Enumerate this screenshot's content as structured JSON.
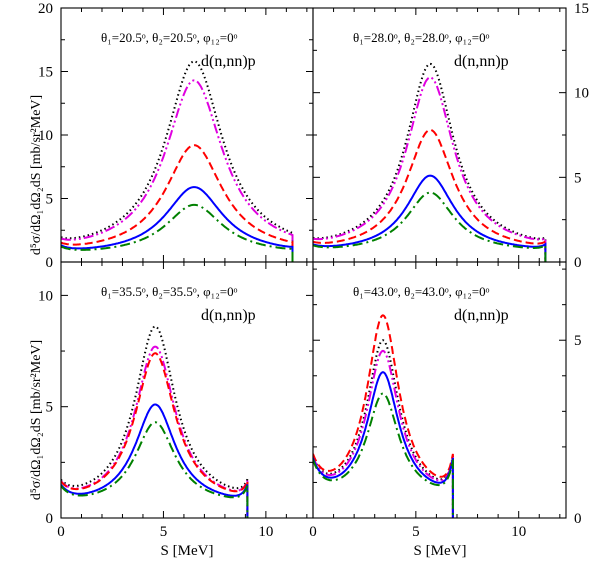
{
  "figure": {
    "ylabel_top": "d⁵σ/dΩ₁dΩ₂dS [mb/sr²MeV]",
    "ylabel_bottom": "d⁵σ/dΩ₁dΩ₂dS [mb/sr²MeV]",
    "xlabel": "S [MeV]"
  },
  "chart_data": [
    {
      "type": "line",
      "panel": "top-left",
      "annotation": "θ₁=20.5ᵒ, θ₂=20.5ᵒ, φ₁₂=0ᵒ",
      "reaction": "d(n,nn)p",
      "xlim": [
        0,
        12.3
      ],
      "ylim": [
        0,
        20
      ],
      "yticks": [
        0,
        5,
        10,
        15,
        20
      ],
      "xticks": [
        0,
        5,
        10
      ],
      "ytick_side": "left",
      "peak": 6.5,
      "hw": 1.7,
      "smax": 11.3,
      "edges": [
        1.0,
        0.6
      ],
      "series": [
        {
          "style": "dotted",
          "color": "#000000",
          "peak_value": 15.8
        },
        {
          "style": "dash-dot-dot",
          "color": "#e000e0",
          "peak_value": 14.3
        },
        {
          "style": "dashed",
          "color": "#ff0000",
          "peak_value": 9.2
        },
        {
          "style": "solid",
          "color": "#0000ff",
          "peak_value": 5.9
        },
        {
          "style": "dash-dot",
          "color": "#008000",
          "peak_value": 4.5
        }
      ]
    },
    {
      "type": "line",
      "panel": "top-right",
      "annotation": "θ₁=28.0ᵒ, θ₂=28.0ᵒ, φ₁₂=0ᵒ",
      "reaction": "d(n,nn)p",
      "xlim": [
        0,
        12.3
      ],
      "ylim": [
        0,
        15
      ],
      "yticks": [
        0,
        5,
        10,
        15
      ],
      "xticks": [
        0,
        5,
        10
      ],
      "ytick_side": "right",
      "peak": 5.7,
      "hw": 1.4,
      "smax": 11.3,
      "edges": [
        0.8,
        0.8
      ],
      "series": [
        {
          "style": "dotted",
          "color": "#000000",
          "peak_value": 11.7
        },
        {
          "style": "dash-dot-dot",
          "color": "#e000e0",
          "peak_value": 10.9
        },
        {
          "style": "dashed",
          "color": "#ff0000",
          "peak_value": 7.8
        },
        {
          "style": "solid",
          "color": "#0000ff",
          "peak_value": 5.1
        },
        {
          "style": "dash-dot",
          "color": "#008000",
          "peak_value": 4.1
        }
      ]
    },
    {
      "type": "line",
      "panel": "bottom-left",
      "annotation": "θ₁=35.5ᵒ, θ₂=35.5ᵒ, φ₁₂=0ᵒ",
      "reaction": "d(n,nn)p",
      "xlim": [
        0,
        12.3
      ],
      "ylim": [
        0,
        11.5
      ],
      "yticks": [
        0,
        5,
        10
      ],
      "xticks": [
        0,
        5,
        10
      ],
      "ytick_side": "left",
      "peak": 4.6,
      "hw": 1.2,
      "smax": 9.1,
      "edges": [
        1.25,
        1.25
      ],
      "series": [
        {
          "style": "dotted",
          "color": "#000000",
          "peak_value": 8.6
        },
        {
          "style": "dash-dot-dot",
          "color": "#e000e0",
          "peak_value": 7.7
        },
        {
          "style": "dashed",
          "color": "#ff0000",
          "peak_value": 7.4
        },
        {
          "style": "solid",
          "color": "#0000ff",
          "peak_value": 5.1
        },
        {
          "style": "dash-dot",
          "color": "#008000",
          "peak_value": 4.3
        }
      ]
    },
    {
      "type": "line",
      "panel": "bottom-right",
      "annotation": "θ₁=43.0ᵒ, θ₂=43.0ᵒ, φ₁₂=0ᵒ",
      "reaction": "d(n,nn)p",
      "xlim": [
        0,
        12.3
      ],
      "ylim": [
        0,
        7.2
      ],
      "yticks": [
        0,
        5
      ],
      "xticks": [
        0,
        5,
        10
      ],
      "ytick_side": "right",
      "peak": 3.4,
      "hw": 0.95,
      "smax": 6.8,
      "edges": [
        1.5,
        1.5
      ],
      "series": [
        {
          "style": "dotted",
          "color": "#000000",
          "peak_value": 5.0
        },
        {
          "style": "dash-dot-dot",
          "color": "#e000e0",
          "peak_value": 4.7
        },
        {
          "style": "dashed",
          "color": "#ff0000",
          "peak_value": 5.7
        },
        {
          "style": "solid",
          "color": "#0000ff",
          "peak_value": 4.1
        },
        {
          "style": "dash-dot",
          "color": "#008000",
          "peak_value": 3.5
        }
      ]
    }
  ]
}
